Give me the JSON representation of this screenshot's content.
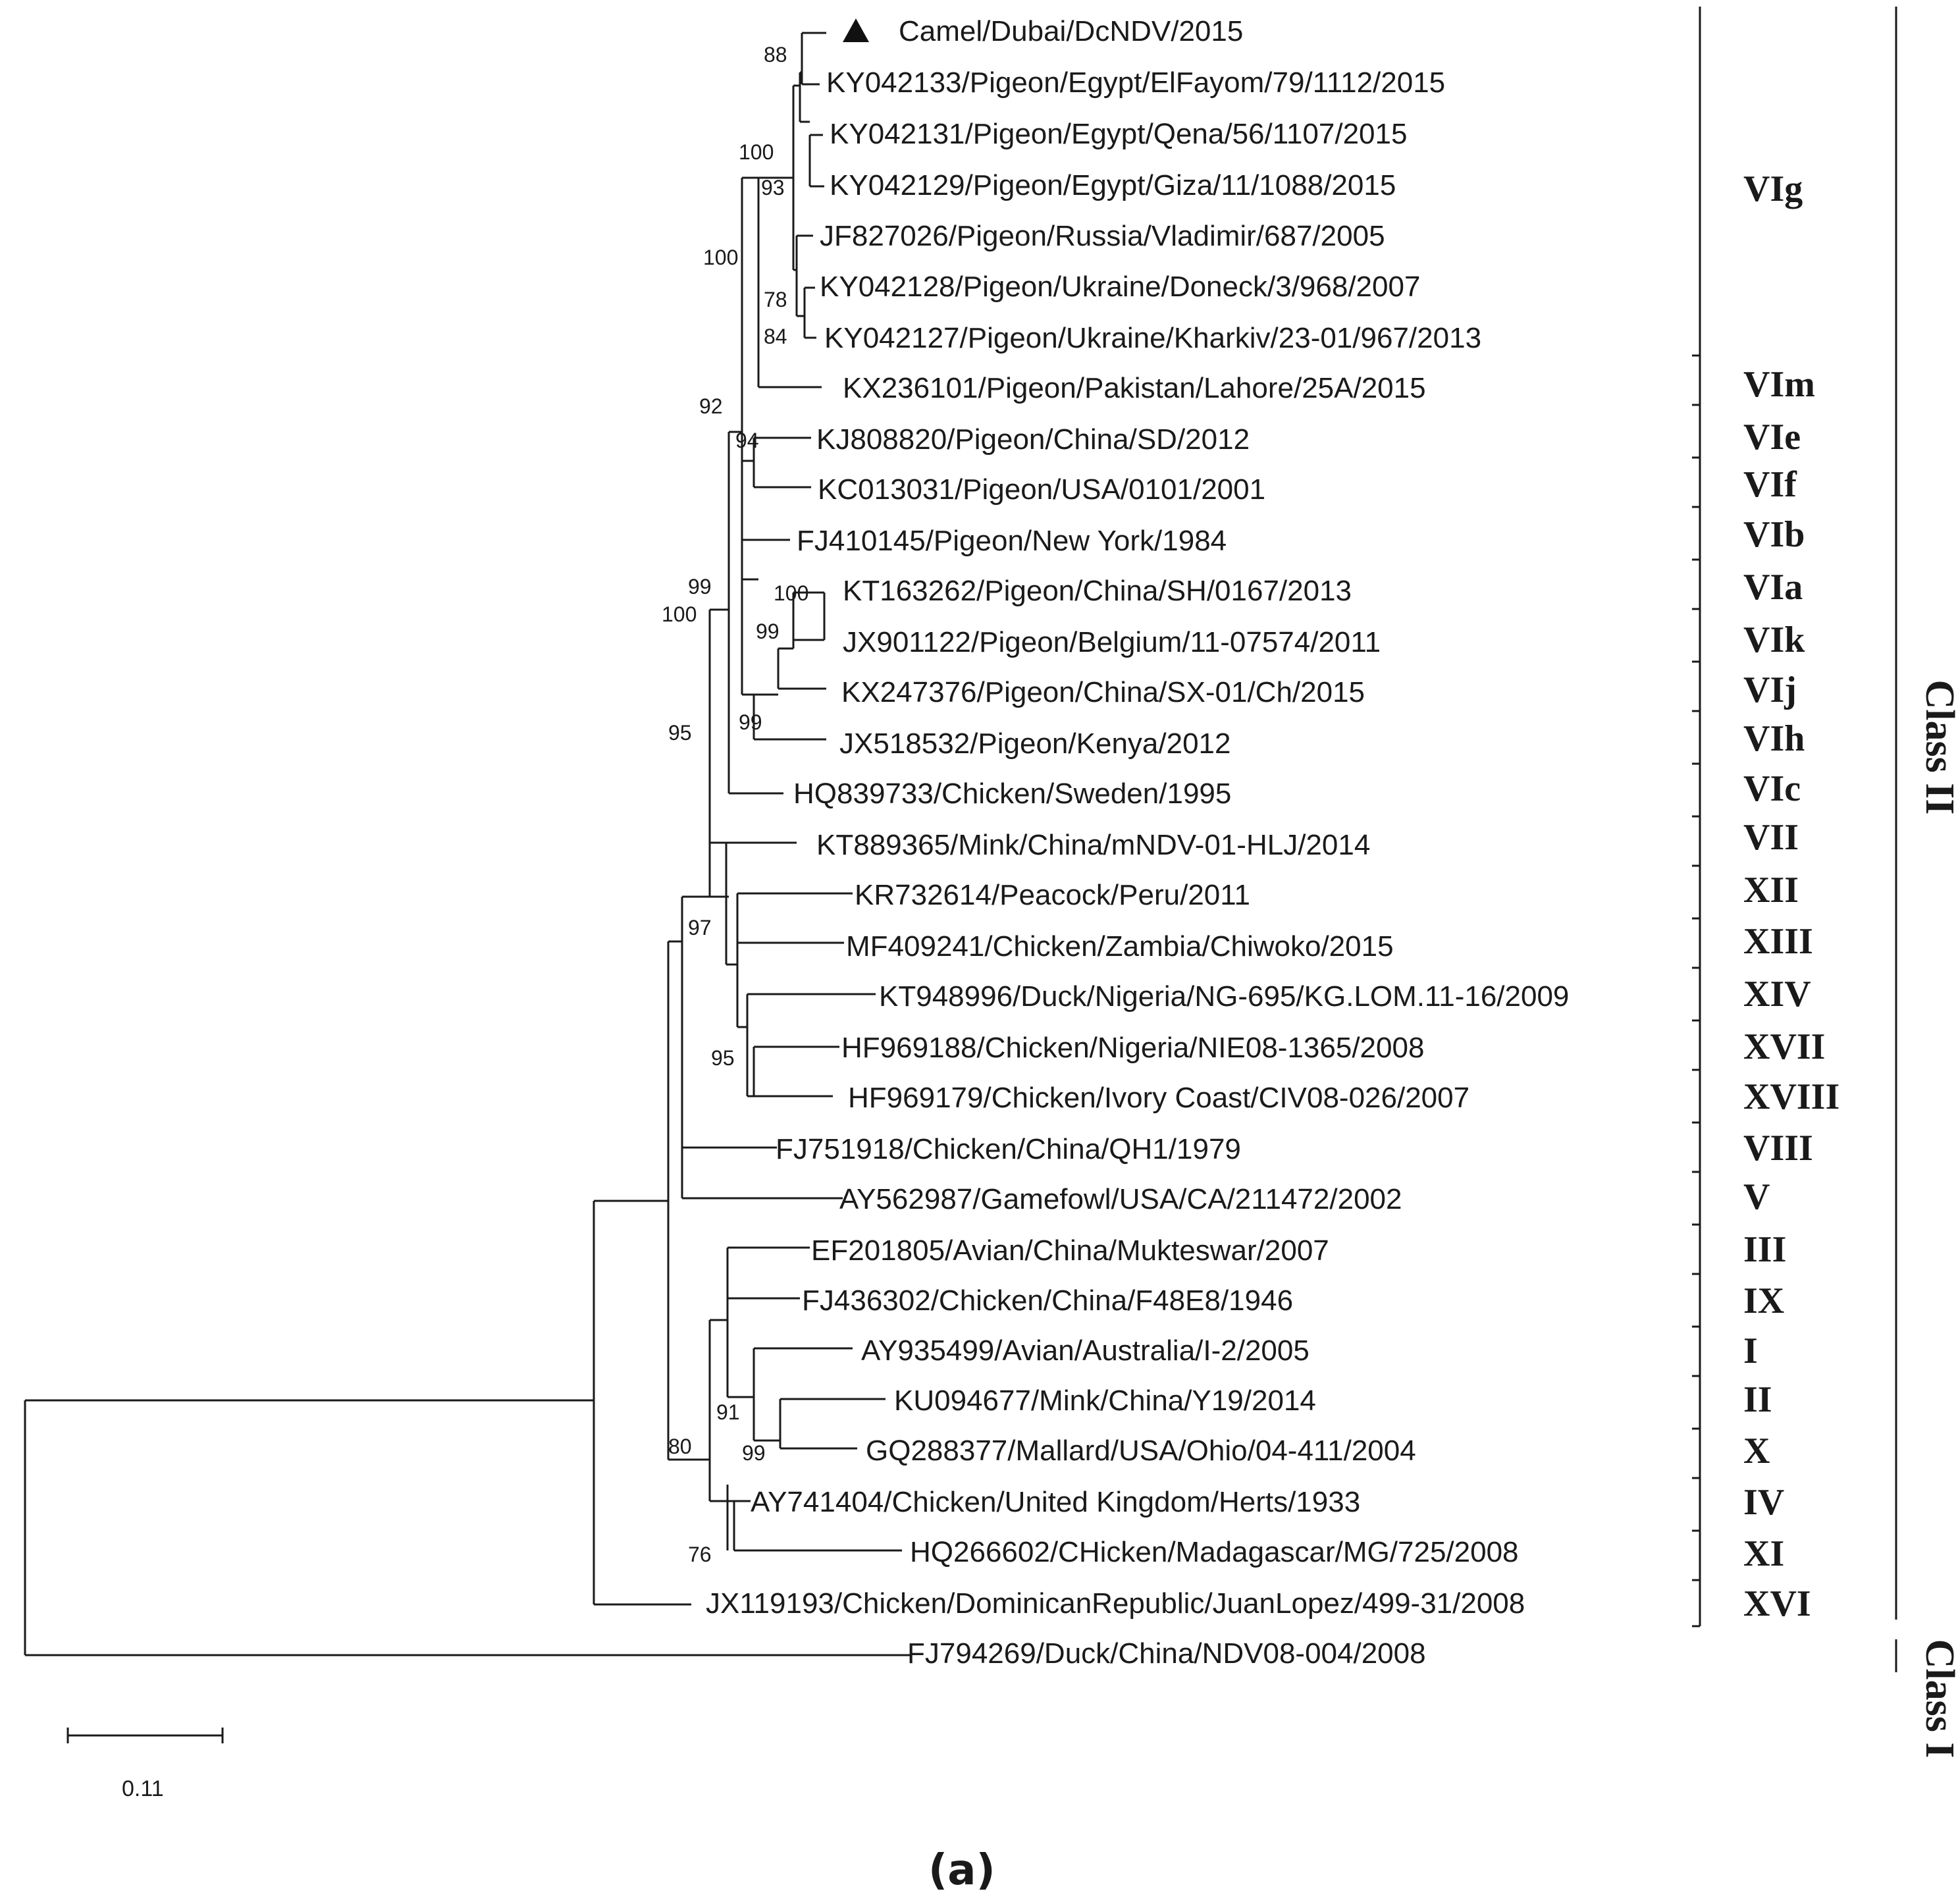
{
  "leaves": [
    {
      "id": "camel",
      "label": "Camel/Dubai/DcNDV/2015",
      "marker": "triangle"
    },
    {
      "id": "ky042133",
      "label": "KY042133/Pigeon/Egypt/ElFayom/79/1112/2015"
    },
    {
      "id": "ky042131",
      "label": "KY042131/Pigeon/Egypt/Qena/56/1107/2015"
    },
    {
      "id": "ky042129",
      "label": "KY042129/Pigeon/Egypt/Giza/11/1088/2015"
    },
    {
      "id": "jf827026",
      "label": "JF827026/Pigeon/Russia/Vladimir/687/2005"
    },
    {
      "id": "ky042128",
      "label": "KY042128/Pigeon/Ukraine/Doneck/3/968/2007"
    },
    {
      "id": "ky042127",
      "label": "KY042127/Pigeon/Ukraine/Kharkiv/23-01/967/2013"
    },
    {
      "id": "kx236101",
      "label": "KX236101/Pigeon/Pakistan/Lahore/25A/2015"
    },
    {
      "id": "kj808820",
      "label": "KJ808820/Pigeon/China/SD/2012"
    },
    {
      "id": "kc013031",
      "label": "KC013031/Pigeon/USA/0101/2001"
    },
    {
      "id": "fj410145",
      "label": "FJ410145/Pigeon/New York/1984"
    },
    {
      "id": "kt163262",
      "label": "KT163262/Pigeon/China/SH/0167/2013"
    },
    {
      "id": "jx901122",
      "label": "JX901122/Pigeon/Belgium/11-07574/2011"
    },
    {
      "id": "kx247376",
      "label": "KX247376/Pigeon/China/SX-01/Ch/2015"
    },
    {
      "id": "jx518532",
      "label": "JX518532/Pigeon/Kenya/2012"
    },
    {
      "id": "hq839733",
      "label": "HQ839733/Chicken/Sweden/1995"
    },
    {
      "id": "kt889365",
      "label": "KT889365/Mink/China/mNDV-01-HLJ/2014"
    },
    {
      "id": "kr732614",
      "label": "KR732614/Peacock/Peru/2011"
    },
    {
      "id": "mf409241",
      "label": "MF409241/Chicken/Zambia/Chiwoko/2015"
    },
    {
      "id": "kt948996",
      "label": "KT948996/Duck/Nigeria/NG-695/KG.LOM.11-16/2009"
    },
    {
      "id": "hf969188",
      "label": "HF969188/Chicken/Nigeria/NIE08-1365/2008"
    },
    {
      "id": "hf969179",
      "label": "HF969179/Chicken/Ivory Coast/CIV08-026/2007"
    },
    {
      "id": "fj751918",
      "label": "FJ751918/Chicken/China/QH1/1979"
    },
    {
      "id": "ay562987",
      "label": "AY562987/Gamefowl/USA/CA/211472/2002"
    },
    {
      "id": "ef201805",
      "label": "EF201805/Avian/China/Mukteswar/2007"
    },
    {
      "id": "fj436302",
      "label": "FJ436302/Chicken/China/F48E8/1946"
    },
    {
      "id": "ay935499",
      "label": "AY935499/Avian/Australia/I-2/2005"
    },
    {
      "id": "ku094677",
      "label": "KU094677/Mink/China/Y19/2014"
    },
    {
      "id": "gq288377",
      "label": "GQ288377/Mallard/USA/Ohio/04-411/2004"
    },
    {
      "id": "ay741404",
      "label": "AY741404/Chicken/United Kingdom/Herts/1933"
    },
    {
      "id": "hq266602",
      "label": "HQ266602/CHicken/Madagascar/MG/725/2008"
    },
    {
      "id": "jx119193",
      "label": "JX119193/Chicken/DominicanRepublic/JuanLopez/499-31/2008"
    },
    {
      "id": "fj794269",
      "label": "FJ794269/Duck/China/NDV08-004/2008"
    }
  ],
  "support_values": {
    "s88": "88",
    "s100a": "100",
    "s93": "93",
    "s100b": "100",
    "s78": "78",
    "s84": "84",
    "s92": "92",
    "s94": "94",
    "s100c": "100",
    "s99a": "99",
    "s99b": "99",
    "s100d": "100",
    "s99c": "99",
    "s95a": "95",
    "s97": "97",
    "s95b": "95",
    "s91": "91",
    "s99d": "99",
    "s80": "80",
    "s76": "76"
  },
  "genotypes": [
    {
      "id": "VIg",
      "label": "VIg"
    },
    {
      "id": "VIm",
      "label": "VIm"
    },
    {
      "id": "VIe",
      "label": "VIe"
    },
    {
      "id": "VIf",
      "label": "VIf"
    },
    {
      "id": "VIb",
      "label": "VIb"
    },
    {
      "id": "VIa",
      "label": "VIa"
    },
    {
      "id": "VIk",
      "label": "VIk"
    },
    {
      "id": "VIj",
      "label": "VIj"
    },
    {
      "id": "VIh",
      "label": "VIh"
    },
    {
      "id": "VIc",
      "label": "VIc"
    },
    {
      "id": "VII",
      "label": "VII"
    },
    {
      "id": "XII",
      "label": "XII"
    },
    {
      "id": "XIII",
      "label": "XIII"
    },
    {
      "id": "XIV",
      "label": "XIV"
    },
    {
      "id": "XVII",
      "label": "XVII"
    },
    {
      "id": "XVIII",
      "label": "XVIII"
    },
    {
      "id": "VIII",
      "label": "VIII"
    },
    {
      "id": "V",
      "label": "V"
    },
    {
      "id": "III",
      "label": "III"
    },
    {
      "id": "IX",
      "label": "IX"
    },
    {
      "id": "I",
      "label": "I"
    },
    {
      "id": "II",
      "label": "II"
    },
    {
      "id": "X",
      "label": "X"
    },
    {
      "id": "IV",
      "label": "IV"
    },
    {
      "id": "XI",
      "label": "XI"
    },
    {
      "id": "XVI",
      "label": "XVI"
    }
  ],
  "classes": {
    "class_ii": "Class II",
    "class_i": "Class I"
  },
  "scale_bar": {
    "value": "0.11"
  },
  "panel_label": "(a)"
}
